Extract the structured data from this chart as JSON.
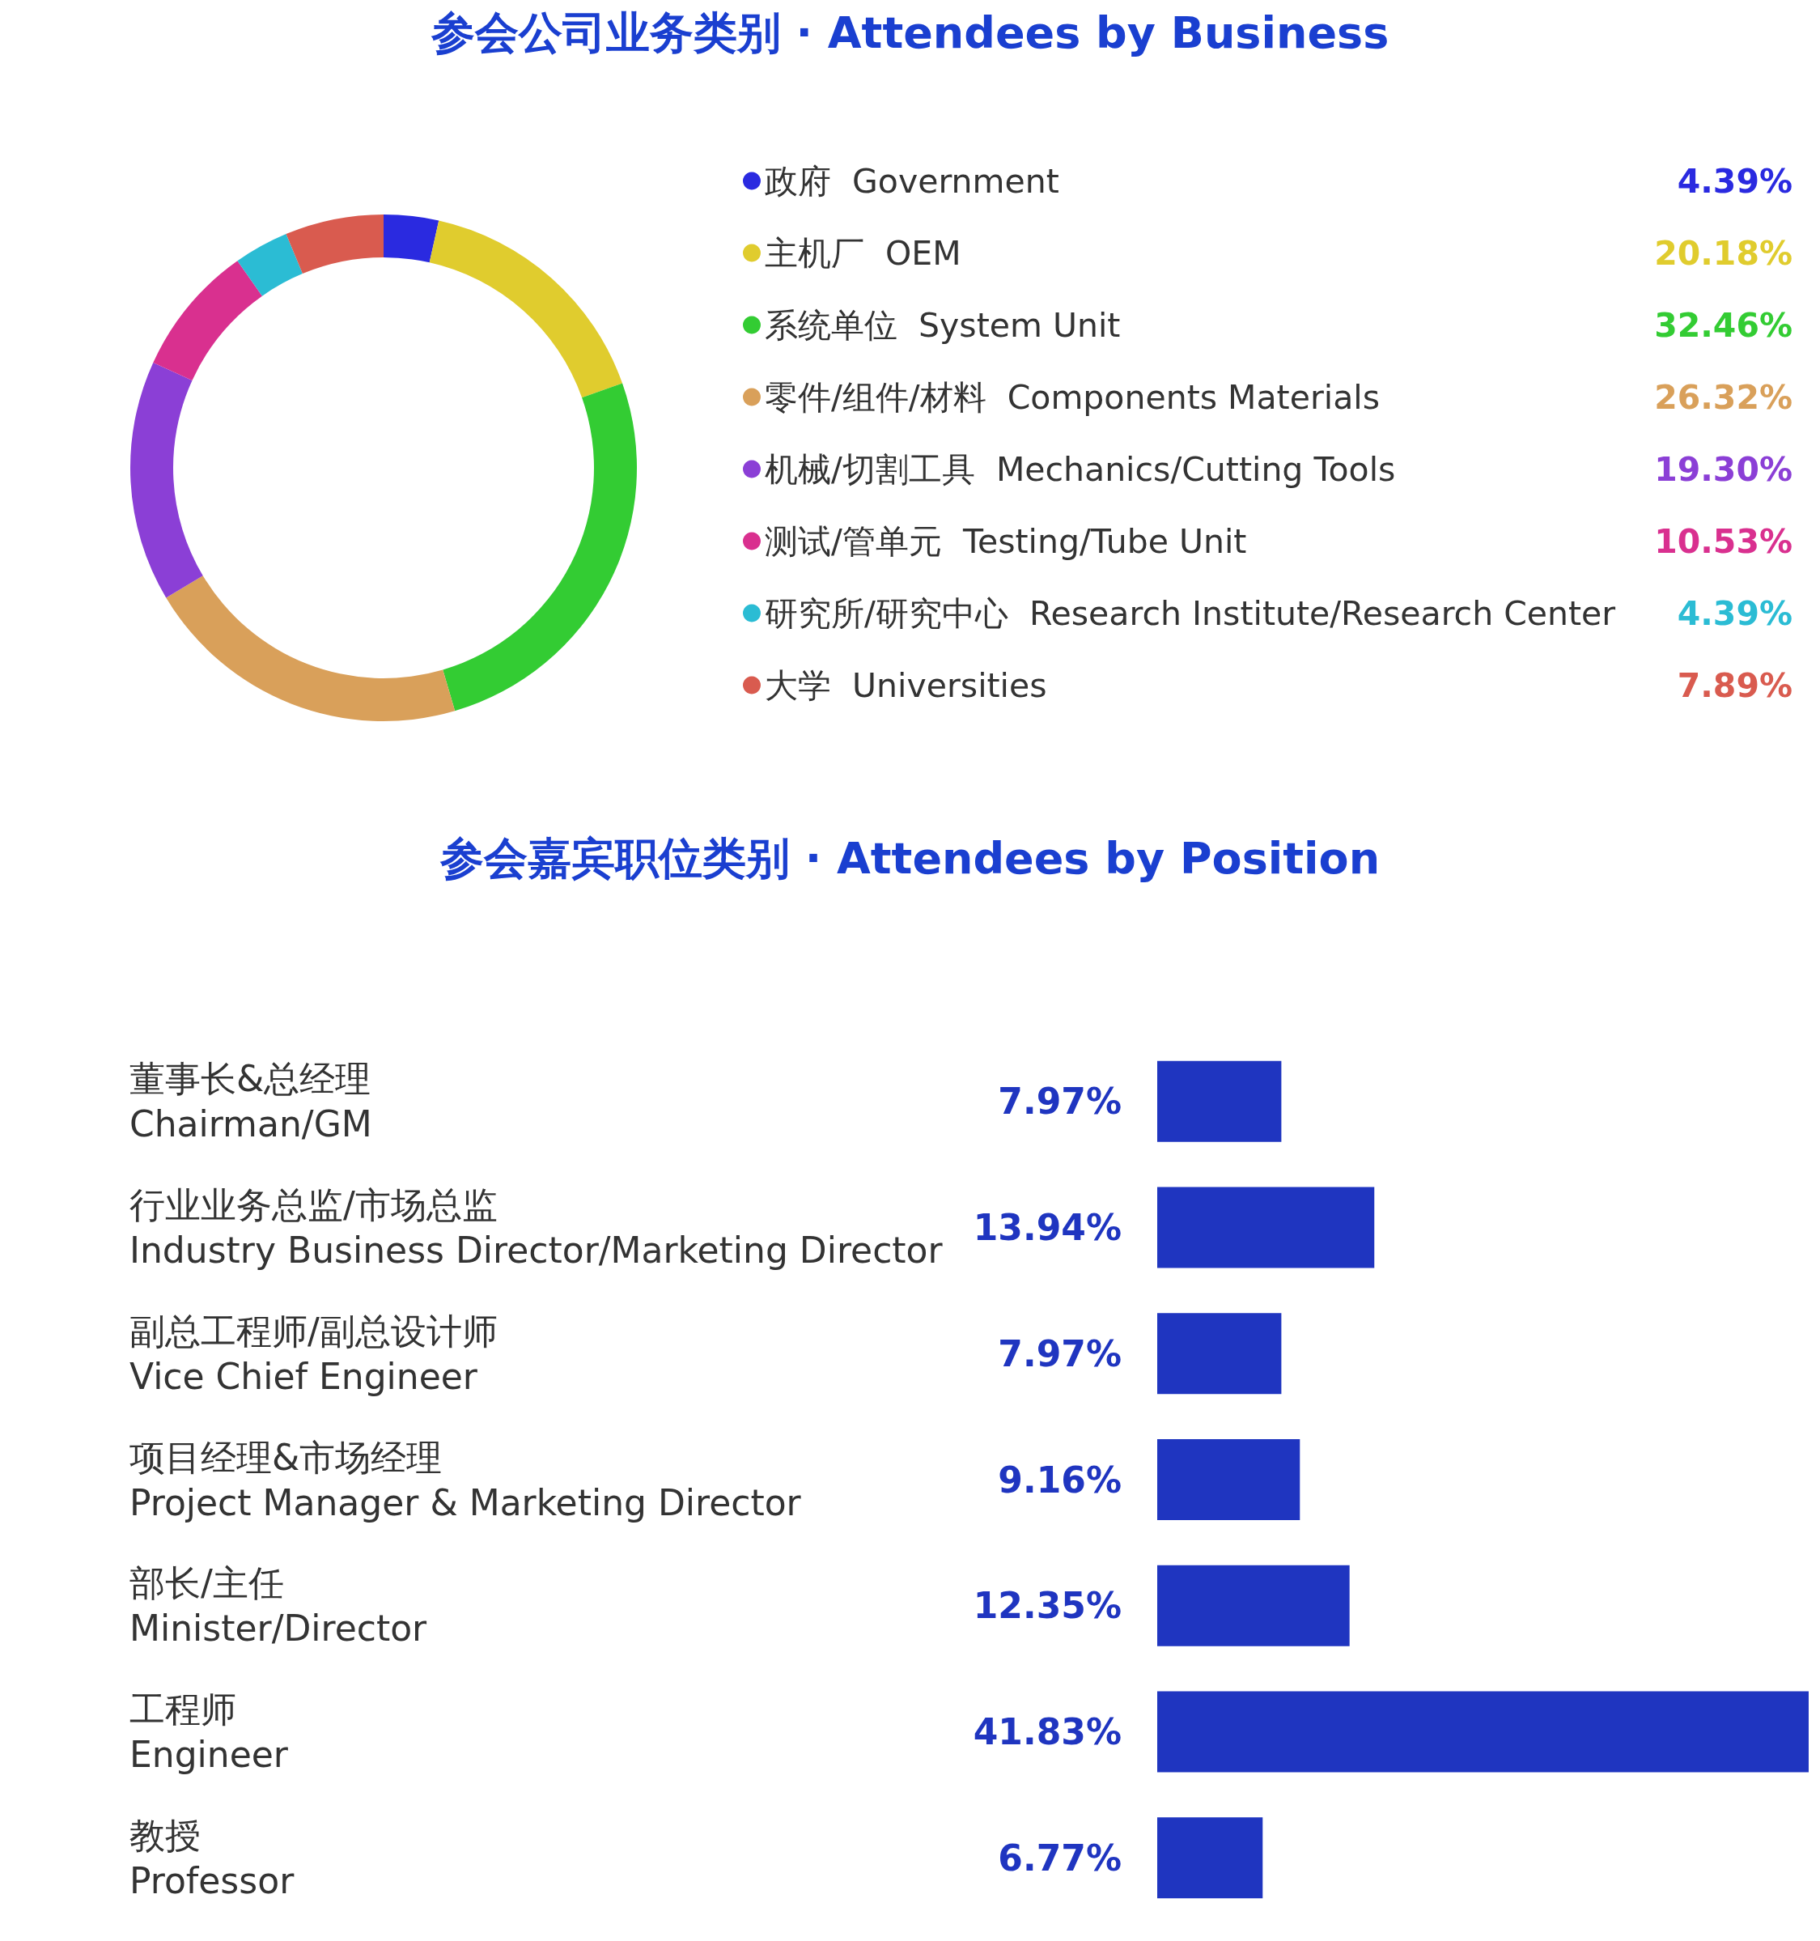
{
  "chart_data": [
    {
      "type": "donut",
      "title": "参会公司业务类别 · Attendees by Business",
      "categories": [
        "政府  Government",
        "主机厂  OEM",
        "系统单位  System Unit",
        "零件/组件/材料  Components Materials",
        "机械/切割工具  Mechanics/Cutting Tools",
        "测试/管单元  Testing/Tube Unit",
        "研究所/研究中心  Research Institute/Research Center",
        "大学  Universities"
      ],
      "values": [
        4.39,
        20.18,
        32.46,
        26.32,
        19.3,
        10.53,
        4.39,
        7.89
      ],
      "value_labels": [
        "4.39%",
        "20.18%",
        "32.46%",
        "26.32%",
        "19.30%",
        "10.53%",
        "4.39%",
        "7.89%"
      ],
      "colors": [
        "#2a2ae0",
        "#e0cc2e",
        "#33cc33",
        "#d9a05a",
        "#8b3fd6",
        "#d9308f",
        "#2bbcd4",
        "#d95b4f"
      ],
      "legend": "right"
    },
    {
      "type": "bar",
      "orientation": "horizontal",
      "title": "参会嘉宾职位类别 · Attendees by Position",
      "categories": [
        "董事长&总经理\nChairman/GM",
        "行业业务总监/市场总监\nIndustry Business Director/Marketing Director",
        "副总工程师/副总设计师\nVice Chief Engineer",
        "项目经理&市场经理\nProject Manager & Marketing Director",
        "部长/主任\nMinister/Director",
        "工程师\nEngineer",
        "教授\nProfessor"
      ],
      "values": [
        7.97,
        13.94,
        7.97,
        9.16,
        12.35,
        41.83,
        6.77
      ],
      "value_labels": [
        "7.97%",
        "13.94%",
        "7.97%",
        "9.16%",
        "12.35%",
        "41.83%",
        "6.77%"
      ],
      "color": "#1f35c0"
    }
  ]
}
